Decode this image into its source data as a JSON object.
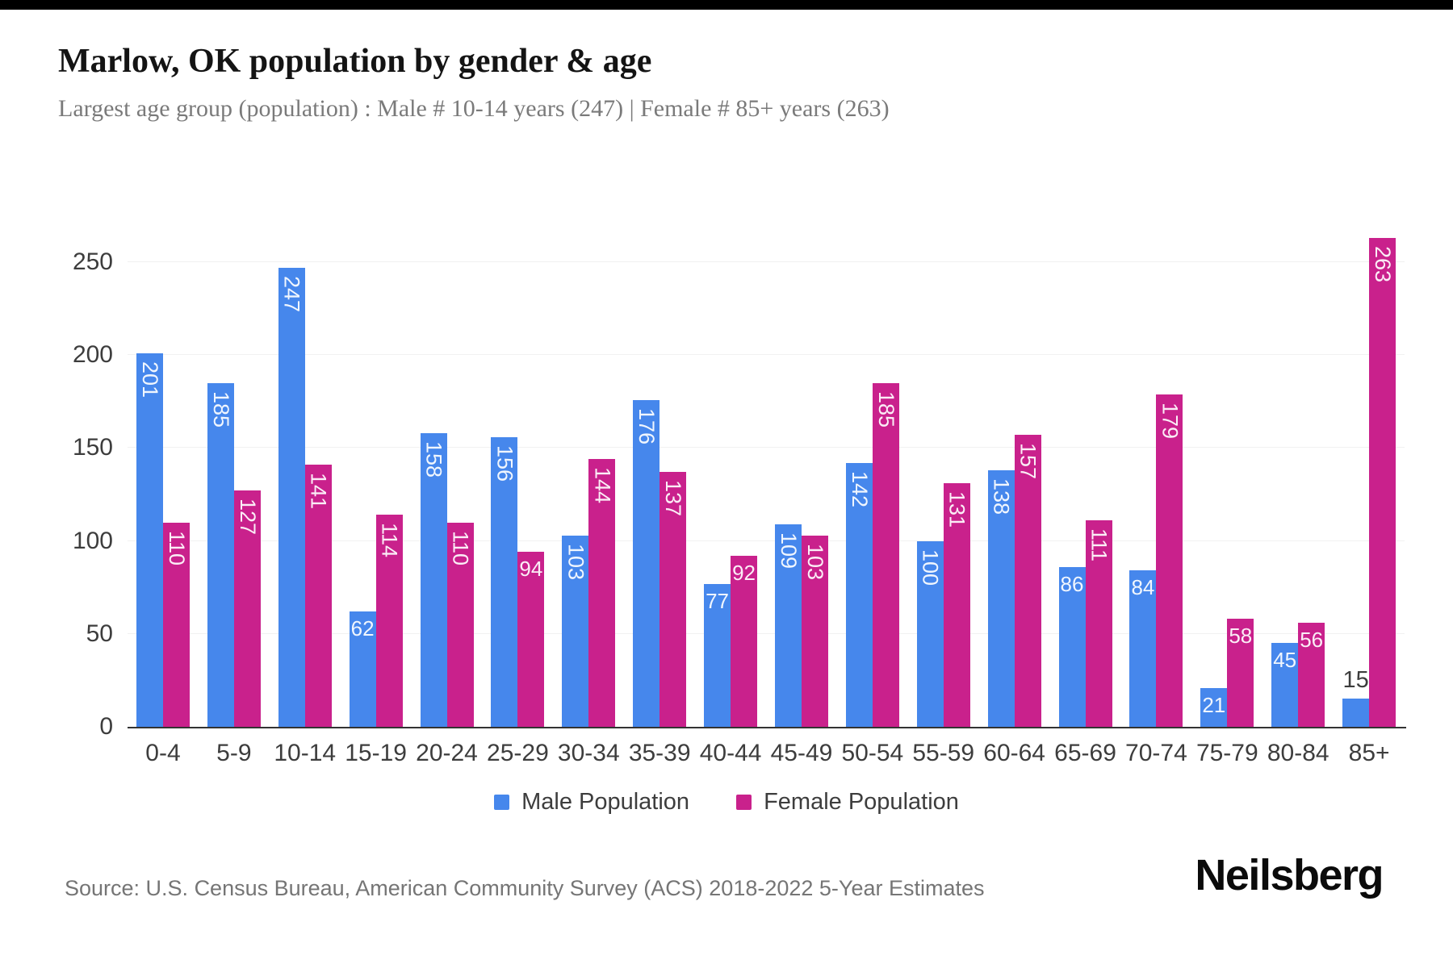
{
  "page": {
    "top_bar_color": "#000000",
    "background_color": "#ffffff"
  },
  "header": {
    "title": "Marlow, OK population by gender & age",
    "subtitle": "Largest age group (population) : Male # 10-14 years (247) | Female # 85+ years (263)"
  },
  "footer": {
    "source": "Source: U.S. Census Bureau, American Community Survey (ACS) 2018-2022 5-Year Estimates",
    "brand": "Neilsberg"
  },
  "chart_data": {
    "type": "bar",
    "title": "Marlow, OK population by gender & age",
    "categories": [
      "0-4",
      "5-9",
      "10-14",
      "15-19",
      "20-24",
      "25-29",
      "30-34",
      "35-39",
      "40-44",
      "45-49",
      "50-54",
      "55-59",
      "60-64",
      "65-69",
      "70-74",
      "75-79",
      "80-84",
      "85+"
    ],
    "series": [
      {
        "name": "Male Population",
        "color": "#4687ec",
        "values": [
          201,
          185,
          247,
          62,
          158,
          156,
          103,
          176,
          77,
          109,
          142,
          100,
          138,
          86,
          84,
          21,
          45,
          15
        ]
      },
      {
        "name": "Female Population",
        "color": "#c9218c",
        "values": [
          110,
          127,
          141,
          114,
          110,
          94,
          144,
          137,
          92,
          103,
          185,
          131,
          157,
          111,
          179,
          58,
          56,
          263
        ]
      }
    ],
    "xlabel": "",
    "ylabel": "",
    "ylim": [
      0,
      280
    ],
    "yticks": [
      0,
      50,
      100,
      150,
      200,
      250
    ],
    "grid": "horizontal",
    "gridline_color": "#f1f1f1",
    "axis_line_color": "#333333",
    "tick_label_color": "#3d3d3d",
    "legend_position": "bottom",
    "bar_label_color_inside": "#ffffff",
    "bar_label_color_outside": "#3d3d3d"
  }
}
